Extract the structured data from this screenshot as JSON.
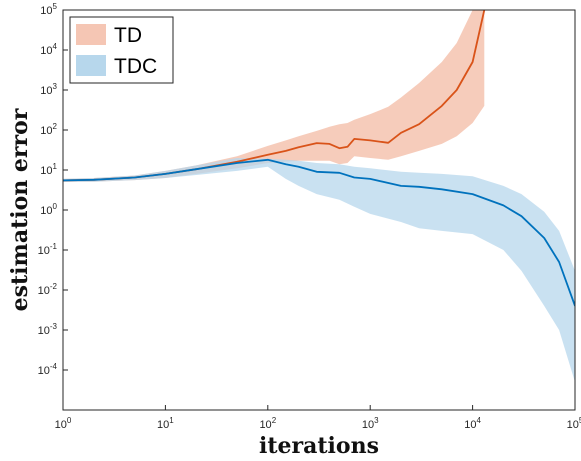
{
  "chart_data": {
    "type": "line",
    "title": "",
    "xlabel": "iterations",
    "ylabel": "estimation error",
    "xscale": "log",
    "yscale": "log",
    "xlim": [
      1,
      100000
    ],
    "ylim": [
      1e-05,
      100000
    ],
    "xticks": [
      1,
      10,
      100,
      1000,
      10000,
      100000
    ],
    "yticks": [
      0.0001,
      0.001,
      0.01,
      0.1,
      1,
      10,
      100,
      1000,
      10000,
      100000
    ],
    "grid": false,
    "legend_position": "top-left",
    "series": [
      {
        "name": "TD",
        "line_color": "#d95319",
        "band_color": "#f5c6b4",
        "x": [
          1,
          2,
          5,
          10,
          20,
          50,
          100,
          150,
          200,
          300,
          400,
          500,
          600,
          700,
          1000,
          1500,
          2000,
          3000,
          5000,
          7000,
          10000,
          13000
        ],
        "y": [
          5.5,
          5.7,
          6.5,
          8,
          10.5,
          16,
          24,
          30,
          37,
          47,
          45,
          35,
          38,
          60,
          55,
          48,
          85,
          140,
          400,
          1000,
          5000,
          100000
        ],
        "upper": [
          6,
          6.3,
          7.3,
          9.5,
          13,
          22,
          40,
          55,
          70,
          95,
          120,
          140,
          150,
          180,
          250,
          380,
          650,
          1500,
          5000,
          15000,
          100000,
          100000
        ],
        "lower": [
          5,
          5.1,
          5.6,
          6.3,
          8,
          11,
          15,
          16,
          17,
          17,
          17,
          14,
          15,
          22,
          20,
          18,
          22,
          30,
          45,
          70,
          150,
          400
        ]
      },
      {
        "name": "TDC",
        "line_color": "#0072bd",
        "band_color": "#b7d7ec",
        "x": [
          1,
          2,
          5,
          10,
          20,
          50,
          100,
          150,
          200,
          300,
          500,
          700,
          1000,
          2000,
          3000,
          5000,
          10000,
          20000,
          30000,
          50000,
          70000,
          100000
        ],
        "y": [
          5.5,
          5.7,
          6.5,
          8,
          10.5,
          15,
          18,
          14,
          12,
          9,
          8.5,
          6.5,
          6,
          4,
          3.8,
          3.3,
          2.5,
          1.3,
          0.7,
          0.2,
          0.05,
          0.004
        ],
        "upper": [
          6,
          6.3,
          7.3,
          9.5,
          13,
          20,
          19,
          18,
          17,
          15,
          14,
          12,
          11,
          9,
          8.5,
          8,
          7,
          4,
          2.5,
          0.9,
          0.3,
          0.03
        ],
        "lower": [
          5,
          5.1,
          5.6,
          6.3,
          7.5,
          9.5,
          12,
          6,
          4,
          2.5,
          1.8,
          1.2,
          0.8,
          0.5,
          0.35,
          0.3,
          0.25,
          0.1,
          0.03,
          0.004,
          0.001,
          5e-05
        ]
      }
    ]
  }
}
